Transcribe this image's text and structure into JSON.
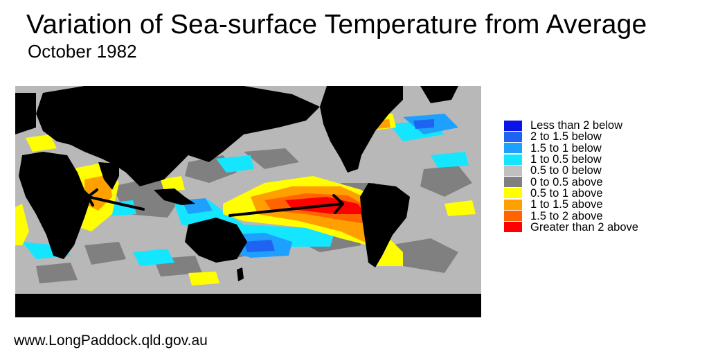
{
  "title": "Variation of Sea-surface Temperature from Average",
  "subtitle": "October 1982",
  "source": "www.LongPaddock.qld.gov.au",
  "colors": {
    "ocean_base": "#b8b8b8",
    "land": "#000000",
    "arrow": "#000000"
  },
  "legend": [
    {
      "label": "Less than 2 below",
      "color": "#0a14e6"
    },
    {
      "label": "2 to 1.5 below",
      "color": "#1e64f0"
    },
    {
      "label": "1.5 to 1 below",
      "color": "#1ea0ff"
    },
    {
      "label": "1 to 0.5 below",
      "color": "#14e6ff"
    },
    {
      "label": "0.5 to 0 below",
      "color": "#c0c0c0"
    },
    {
      "label": "0 to 0.5 above",
      "color": "#808080"
    },
    {
      "label": "0.5 to 1 above",
      "color": "#ffff00"
    },
    {
      "label": "1 to 1.5 above",
      "color": "#ffa000"
    },
    {
      "label": "1.5 to 2 above",
      "color": "#ff6400"
    },
    {
      "label": "Greater than 2 above",
      "color": "#ff0000"
    }
  ]
}
